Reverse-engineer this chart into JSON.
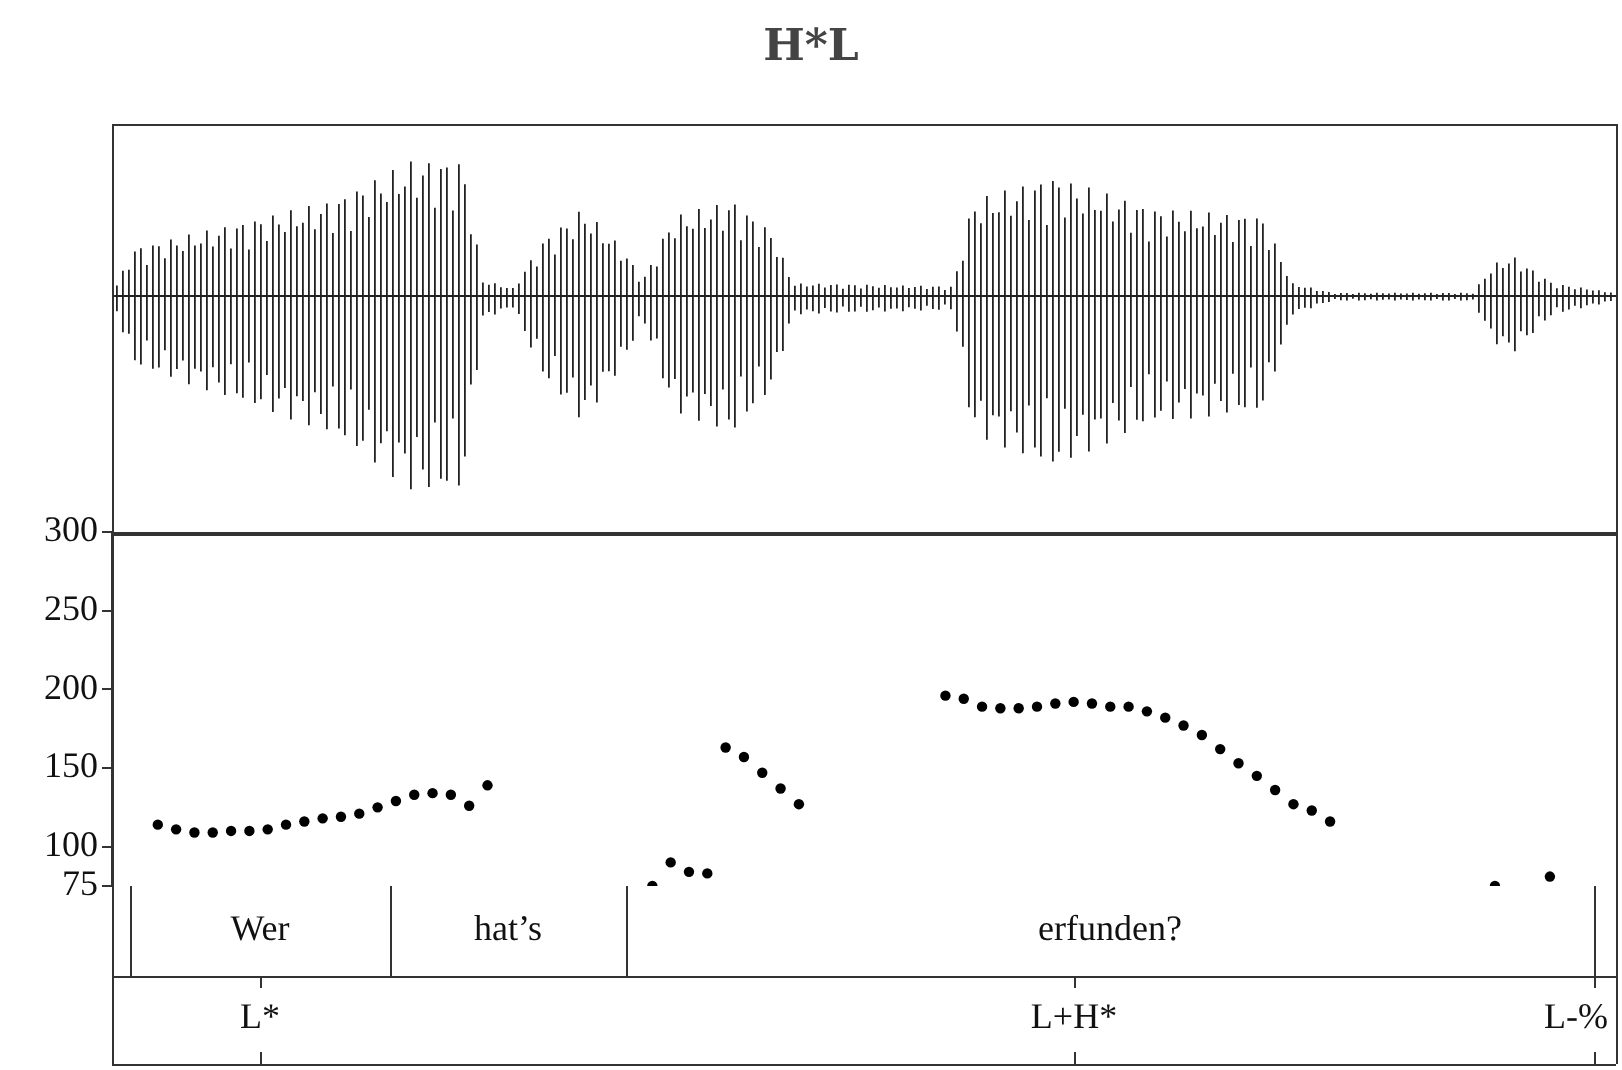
{
  "chart_data": {
    "type": "scatter",
    "title": "H*L",
    "categories": [
      null,
      null,
      null,
      null,
      null,
      null,
      null,
      null,
      null,
      null,
      null,
      null,
      null,
      null,
      null,
      null,
      null,
      null,
      null,
      null,
      null,
      null,
      null,
      null,
      null,
      null,
      null,
      null,
      null,
      null,
      null,
      null,
      null,
      null,
      null,
      null,
      null,
      null,
      null,
      null,
      null,
      null,
      null,
      null,
      null,
      null,
      null,
      null,
      null,
      null,
      null,
      null,
      null,
      null,
      null,
      null,
      null,
      null,
      null,
      null,
      null,
      null,
      null,
      null,
      null,
      null,
      null,
      null,
      null,
      null,
      null,
      null,
      null,
      null,
      null,
      null,
      null,
      null,
      null,
      null,
      null,
      null
    ],
    "values": [
      null,
      null,
      114,
      111,
      109,
      109,
      110,
      110,
      111,
      114,
      116,
      118,
      119,
      121,
      125,
      129,
      133,
      134,
      133,
      126,
      139,
      null,
      null,
      null,
      null,
      null,
      null,
      null,
      null,
      75,
      90,
      84,
      83,
      163,
      157,
      147,
      137,
      127,
      null,
      null,
      null,
      null,
      null,
      null,
      null,
      196,
      194,
      189,
      188,
      188,
      189,
      191,
      192,
      191,
      189,
      189,
      186,
      182,
      177,
      171,
      162,
      153,
      145,
      136,
      127,
      123,
      116,
      null,
      null,
      null,
      null,
      null,
      null,
      null,
      null,
      75,
      null,
      null,
      81,
      null,
      null,
      null
    ],
    "color": "#000000",
    "marker": "circle",
    "ylim": [
      75,
      300
    ],
    "yticks": [
      75,
      100,
      150,
      200,
      250,
      300
    ],
    "annotations": [
      "Wer",
      "hat’s",
      "erfunden?",
      "L*",
      "L+H*",
      "L-%"
    ],
    "grid": false,
    "legend": false
  }
}
